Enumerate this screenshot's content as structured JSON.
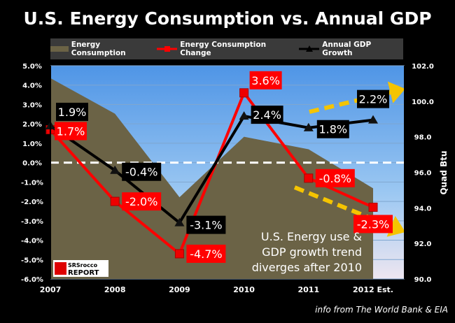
{
  "chart_data": {
    "type": "line",
    "title": "U.S. Energy Consumption vs. Annual GDP",
    "categories": [
      "2007",
      "2008",
      "2009",
      "2010",
      "2011",
      "2012 Est."
    ],
    "series": [
      {
        "name": "Energy Consumption",
        "kind": "area",
        "axis": "right",
        "values": [
          101.3,
          99.3,
          94.6,
          98.0,
          97.3,
          95.1
        ],
        "color": "#6b6346"
      },
      {
        "name": "Energy Consumption Change",
        "kind": "line",
        "axis": "left",
        "values": [
          1.7,
          -2.0,
          -4.7,
          3.6,
          -0.8,
          -2.3
        ],
        "labels": [
          "1.7%",
          "-2.0%",
          "-4.7%",
          "3.6%",
          "-0.8%",
          "-2.3%"
        ],
        "color": "#ff0000"
      },
      {
        "name": "Annual GDP Growth",
        "kind": "line",
        "axis": "left",
        "values": [
          1.9,
          -0.4,
          -3.1,
          2.4,
          1.8,
          2.2
        ],
        "labels": [
          "1.9%",
          "-0.4%",
          "-3.1%",
          "2.4%",
          "1.8%",
          "2.2%"
        ],
        "color": "#000000"
      }
    ],
    "left_axis": {
      "range": [
        -6,
        5
      ],
      "ticks": [
        "5.0%",
        "4.0%",
        "3.0%",
        "2.0%",
        "1.0%",
        "0.0%",
        "-1.0%",
        "-2.0%",
        "-3.0%",
        "-4.0%",
        "-5.0%",
        "-6.0%"
      ]
    },
    "right_axis": {
      "label": "Quad Btu",
      "range": [
        90,
        102
      ],
      "ticks": [
        "102.0",
        "100.0",
        "98.0",
        "96.0",
        "94.0",
        "92.0",
        "90.0"
      ]
    },
    "grid": true,
    "legend_position": "top",
    "annotation": [
      "U.S. Energy use &",
      "GDP growth trend",
      "diverges after 2010"
    ],
    "arrow_color": "#f5c400"
  },
  "logo": {
    "top": "SRSrocco",
    "bottom": "REPORT"
  },
  "footer": "info from The World Bank & EIA"
}
